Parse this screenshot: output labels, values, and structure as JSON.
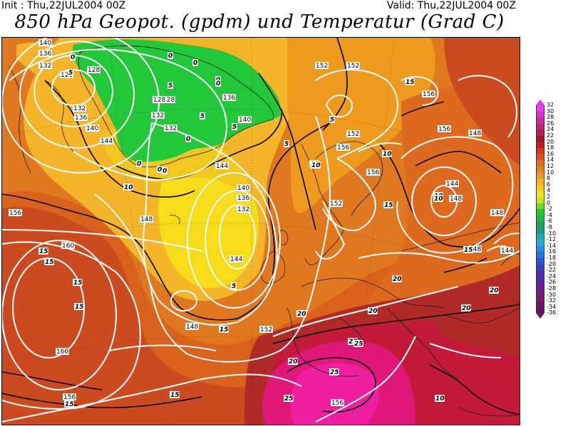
{
  "header": {
    "init": "Init : Thu,22JUL2004 00Z",
    "valid": "Valid: Thu,22JUL2004 00Z",
    "title": "850 hPa Geopot. (gpdm) und Temperatur (Grad C)"
  },
  "colors": {
    "green": "#22c83a",
    "yellow": "#f7e41a",
    "light_orange": "#f5b52a",
    "orange": "#ee8c1c",
    "dark_orange": "#dd6a1e",
    "red_orange": "#cc4a20",
    "dark_red": "#b02a28",
    "crimson": "#c41a3a",
    "magenta": "#e0187a",
    "pink": "#f01ea0"
  },
  "legend": {
    "ticks": [
      "32",
      "30",
      "28",
      "26",
      "24",
      "22",
      "20",
      "18",
      "16",
      "14",
      "12",
      "10",
      "8",
      "6",
      "4",
      "2",
      "0",
      "-2",
      "-4",
      "-6",
      "-8",
      "-10",
      "-12",
      "-14",
      "-16",
      "-18",
      "-20",
      "-22",
      "-24",
      "-26",
      "-28",
      "-30",
      "-32",
      "-34",
      "-36"
    ],
    "colors": [
      "#f040f0",
      "#e030c8",
      "#d02aa0",
      "#c8208a",
      "#b41e55",
      "#a01a2a",
      "#c22020",
      "#d6341c",
      "#dd4e1c",
      "#e36a1e",
      "#e8841e",
      "#ee9a1e",
      "#f2b41e",
      "#f6cc1c",
      "#f6e41a",
      "#c8e81a",
      "#7ad81a",
      "#22c83a",
      "#1cb64a",
      "#20a05a",
      "#1c9a8a",
      "#22aab4",
      "#2aa8e0",
      "#2a8ce4",
      "#2a6ee0",
      "#3050d0",
      "#3c3cc0",
      "#4a30b0",
      "#5a28a0",
      "#6a2094",
      "#742084",
      "#7a1a74",
      "#701866",
      "#621458"
    ]
  },
  "geopotential_labels": [
    "140",
    "136",
    "132",
    "128",
    "132",
    "136",
    "140",
    "144",
    "128",
    "132",
    "128",
    "136",
    "140",
    "132",
    "152",
    "152",
    "156",
    "152",
    "156",
    "156",
    "152",
    "156",
    "140",
    "136",
    "132",
    "144",
    "148",
    "144",
    "148",
    "156",
    "160",
    "144",
    "148",
    "152",
    "148",
    "160",
    "156",
    "156",
    "148",
    "144",
    "148",
    "128"
  ],
  "temperature_labels": [
    "0",
    "5",
    "0",
    "5",
    "0",
    "0",
    "0",
    "5",
    "0",
    "5",
    "0",
    "5",
    "15",
    "5",
    "10",
    "5",
    "10",
    "10",
    "10",
    "20",
    "15",
    "10",
    "10",
    "15",
    "15",
    "15",
    "15",
    "5",
    "15",
    "20",
    "20",
    "20",
    "20",
    "25",
    "25",
    "25",
    "25",
    "20",
    "15",
    "15",
    "15",
    "10",
    "0",
    "0"
  ]
}
